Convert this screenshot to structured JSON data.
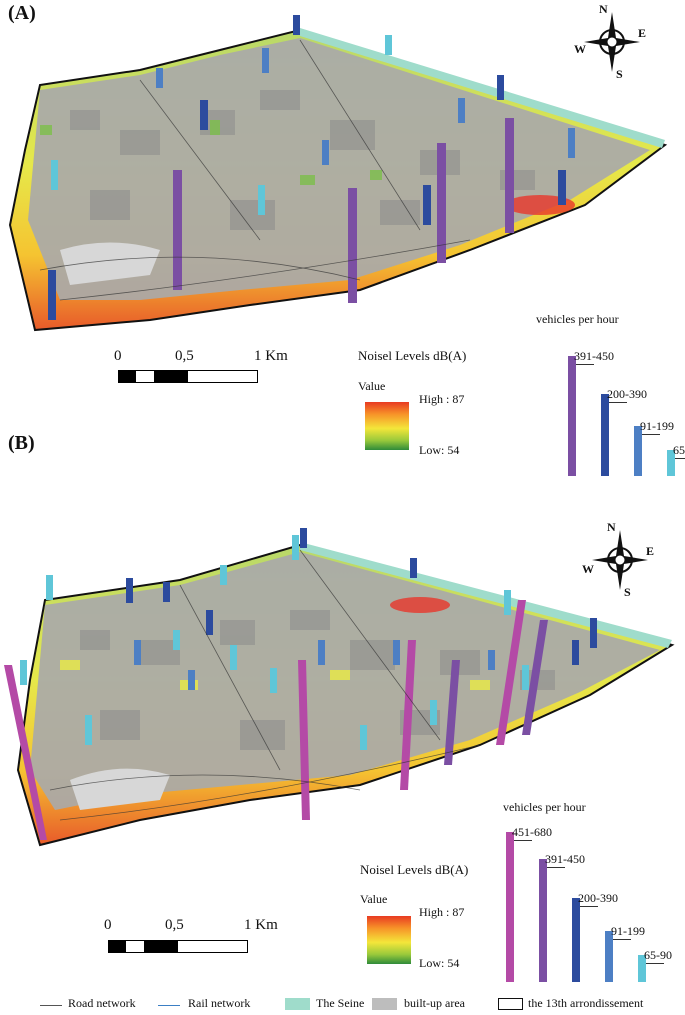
{
  "panels": [
    {
      "label": "(A)",
      "compass": {
        "n": "N",
        "e": "E",
        "s": "S",
        "w": "W"
      },
      "scale": {
        "t0": "0",
        "t1": "0,5",
        "t2": "1 Km"
      },
      "noise_legend": {
        "title": "Noisel Levels dB(A)",
        "value": "Value",
        "high": "High : 87",
        "low": "Low:  54"
      },
      "vehicles": {
        "title": "vehicles per hour",
        "classes": [
          {
            "label": "391-450",
            "color": "#7b4fa3",
            "level": 0.82
          },
          {
            "label": "200-390",
            "color": "#2c4b9e",
            "level": 0.56
          },
          {
            "label": "91-199",
            "color": "#4d7fc4",
            "level": 0.34
          },
          {
            "label": "65-90",
            "color": "#5fc6d8",
            "level": 0.18
          }
        ]
      }
    },
    {
      "label": "(B)",
      "compass": {
        "n": "N",
        "e": "E",
        "s": "S",
        "w": "W"
      },
      "scale": {
        "t0": "0",
        "t1": "0,5",
        "t2": "1 Km"
      },
      "noise_legend": {
        "title": "Noisel Levels dB(A)",
        "value": "Value",
        "high": "High : 87",
        "low": "Low:  54"
      },
      "vehicles": {
        "title": "vehicles per hour",
        "classes": [
          {
            "label": "451-680",
            "color": "#b44aa6",
            "level": 1.0
          },
          {
            "label": "391-450",
            "color": "#7b4fa3",
            "level": 0.82
          },
          {
            "label": "200-390",
            "color": "#2c4b9e",
            "level": 0.56
          },
          {
            "label": "91-199",
            "color": "#4d7fc4",
            "level": 0.34
          },
          {
            "label": "65-90",
            "color": "#5fc6d8",
            "level": 0.18
          }
        ]
      }
    }
  ],
  "bottom_legend": {
    "road": "Road network",
    "rail": "Rail network",
    "seine": "The Seine",
    "builtup": "built-up area",
    "arrondissement": "the 13th arrondissement"
  },
  "colors": {
    "road": "#555555",
    "rail": "#3b7fc4",
    "seine": "#9fdccb",
    "builtup": "#bdbdbd"
  }
}
